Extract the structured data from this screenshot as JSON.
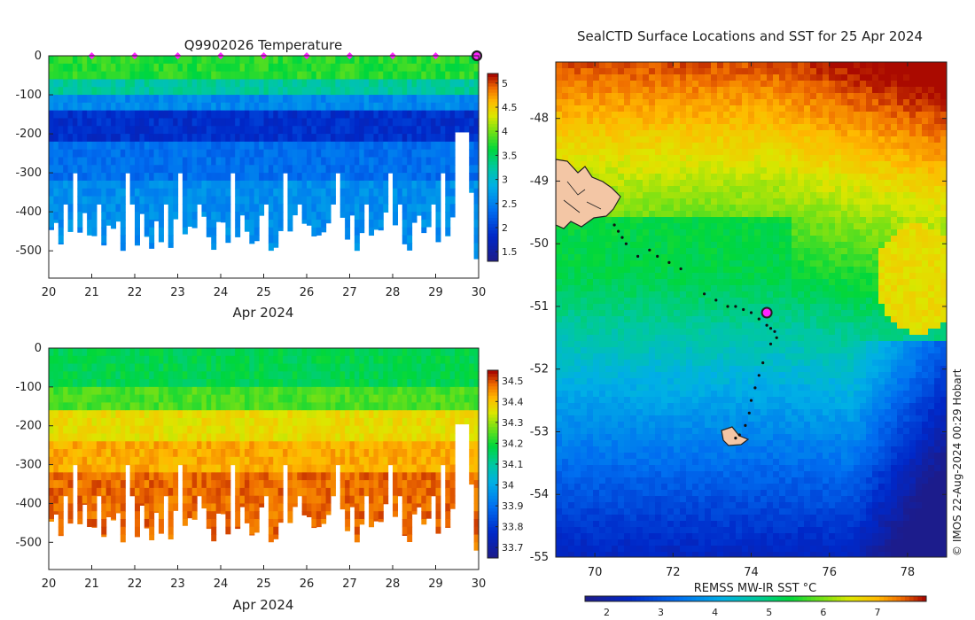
{
  "chart_data": [
    {
      "id": "temperature",
      "type": "heatmap",
      "title": "Q9902026  Temperature",
      "xlabel": "Apr 2024",
      "ylabel": "",
      "x_ticks": [
        20,
        21,
        22,
        23,
        24,
        25,
        26,
        27,
        28,
        29,
        30
      ],
      "xlim": [
        20,
        30
      ],
      "y_ticks": [
        0,
        -100,
        -200,
        -300,
        -400,
        -500
      ],
      "ylim": [
        -570,
        0
      ],
      "colorbar": {
        "min": 1.3,
        "max": 5.2,
        "ticks": [
          1.5,
          2,
          2.5,
          3,
          3.5,
          4,
          4.5,
          5
        ]
      },
      "markers": {
        "color": "#ff22ff",
        "days": [
          21,
          22,
          23,
          24,
          25,
          26,
          27,
          28,
          29
        ],
        "current": 30
      }
    },
    {
      "id": "salinity",
      "type": "heatmap",
      "title": "",
      "xlabel": "Apr 2024",
      "ylabel": "",
      "x_ticks": [
        20,
        21,
        22,
        23,
        24,
        25,
        26,
        27,
        28,
        29,
        30
      ],
      "xlim": [
        20,
        30
      ],
      "y_ticks": [
        0,
        -100,
        -200,
        -300,
        -400,
        -500
      ],
      "ylim": [
        -570,
        0
      ],
      "colorbar": {
        "min": 33.65,
        "max": 34.55,
        "ticks": [
          33.7,
          33.8,
          33.9,
          34,
          34.1,
          34.2,
          34.3,
          34.4,
          34.5
        ]
      }
    },
    {
      "id": "sst_map",
      "type": "heatmap",
      "title": "SealCTD Surface Locations and SST for 25 Apr 2024",
      "x_ticks": [
        70,
        72,
        74,
        76,
        78
      ],
      "xlim": [
        69,
        79
      ],
      "y_ticks": [
        -48,
        -49,
        -50,
        -51,
        -52,
        -53,
        -54,
        -55
      ],
      "ylim": [
        -55,
        -47.1
      ],
      "colorbar": {
        "label": "REMSS MW-IR SST °C",
        "min": 1.6,
        "max": 7.9,
        "ticks": [
          2,
          3,
          4,
          5,
          6,
          7
        ]
      },
      "current_position": {
        "lon": 74.4,
        "lat": -51.1
      },
      "track": [
        [
          70.5,
          -49.7
        ],
        [
          70.6,
          -49.8
        ],
        [
          70.7,
          -49.9
        ],
        [
          70.8,
          -50.0
        ],
        [
          71.1,
          -50.2
        ],
        [
          71.4,
          -50.1
        ],
        [
          71.6,
          -50.2
        ],
        [
          71.9,
          -50.3
        ],
        [
          72.2,
          -50.4
        ],
        [
          72.8,
          -50.8
        ],
        [
          73.1,
          -50.9
        ],
        [
          73.4,
          -51.0
        ],
        [
          73.6,
          -51.0
        ],
        [
          73.8,
          -51.05
        ],
        [
          74.0,
          -51.1
        ],
        [
          74.2,
          -51.2
        ],
        [
          74.4,
          -51.3
        ],
        [
          74.5,
          -51.35
        ],
        [
          74.6,
          -51.4
        ],
        [
          74.65,
          -51.5
        ],
        [
          74.5,
          -51.6
        ],
        [
          74.3,
          -51.9
        ],
        [
          74.2,
          -52.1
        ],
        [
          74.1,
          -52.3
        ],
        [
          74.0,
          -52.5
        ],
        [
          73.95,
          -52.7
        ],
        [
          73.85,
          -52.9
        ],
        [
          73.7,
          -53.05
        ],
        [
          73.6,
          -53.1
        ]
      ]
    }
  ],
  "credit": "© IMOS 22-Aug-2024 00:29 Hobart"
}
